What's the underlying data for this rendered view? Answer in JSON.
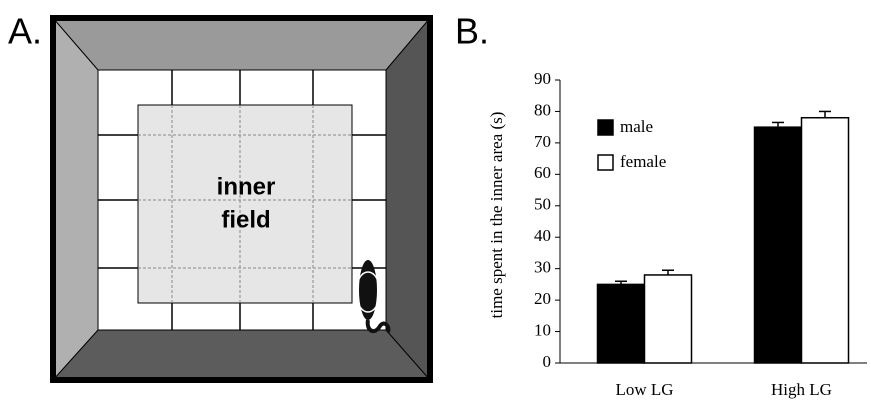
{
  "panel_a": {
    "label": "A.",
    "field_text": [
      "inner",
      "field"
    ]
  },
  "chart_data": {
    "type": "bar",
    "panel_label": "B.",
    "y_label": "time spent in the inner area (s)",
    "categories": [
      "Low LG",
      "High LG"
    ],
    "series": [
      {
        "name": "male",
        "color": "#000000",
        "values": [
          25,
          75
        ],
        "errors": [
          1,
          1.5
        ]
      },
      {
        "name": "female",
        "color": "#ffffff",
        "values": [
          28,
          78
        ],
        "errors": [
          1.5,
          2
        ]
      }
    ],
    "ylim": [
      0,
      90
    ],
    "yticks": [
      0,
      10,
      20,
      30,
      40,
      50,
      60,
      70,
      80,
      90
    ]
  }
}
